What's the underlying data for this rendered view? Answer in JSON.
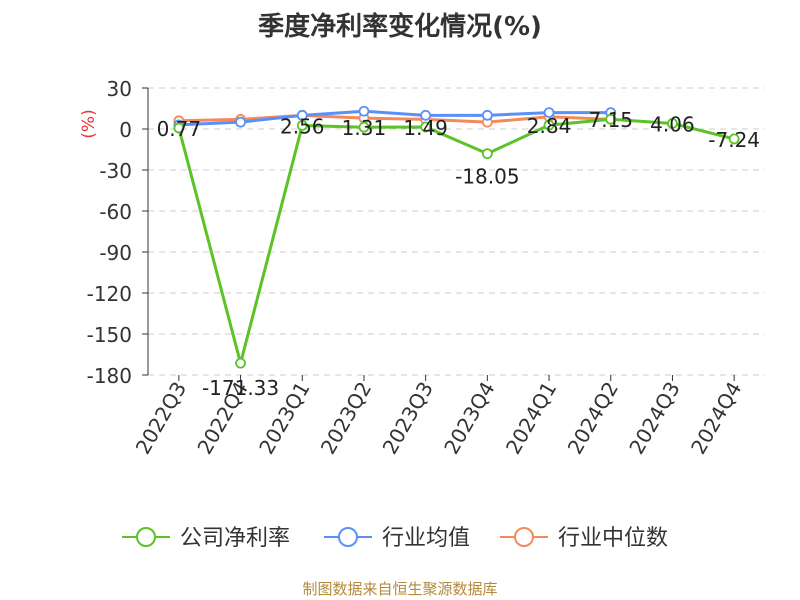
{
  "page": {
    "title": "季度净利率变化情况(%)",
    "source": "制图数据来自恒生聚源数据库"
  },
  "chart_data": {
    "type": "line",
    "title": "季度净利率变化情况(%)",
    "ylabel": "(%)",
    "xlabel": "",
    "categories": [
      "2022Q3",
      "2022Q4",
      "2023Q1",
      "2023Q2",
      "2023Q3",
      "2023Q4",
      "2024Q1",
      "2024Q2",
      "2024Q3",
      "2024Q4"
    ],
    "yticks": [
      30,
      0,
      -30,
      -60,
      -90,
      -120,
      -150,
      -180
    ],
    "ylim": [
      -180,
      30
    ],
    "grid": true,
    "legend_position": "bottom",
    "series": [
      {
        "name": "公司净利率",
        "color": "#5ac326",
        "values": [
          0.77,
          -171.33,
          2.56,
          1.31,
          1.49,
          -18.05,
          2.84,
          7.15,
          4.06,
          -7.24
        ],
        "labels": [
          "0.77",
          "-171.33",
          "2.56",
          "1.31",
          "1.49",
          "-18.05",
          "2.84",
          "7.15",
          "4.06",
          "-7.24"
        ]
      },
      {
        "name": "行业均值",
        "color": "#5b8ff9",
        "values": [
          3,
          5,
          10,
          13,
          10,
          10,
          12,
          12,
          null,
          null
        ]
      },
      {
        "name": "行业中位数",
        "color": "#f4895a",
        "values": [
          6,
          7,
          10,
          8,
          7,
          5,
          9,
          7,
          null,
          null
        ]
      }
    ]
  }
}
